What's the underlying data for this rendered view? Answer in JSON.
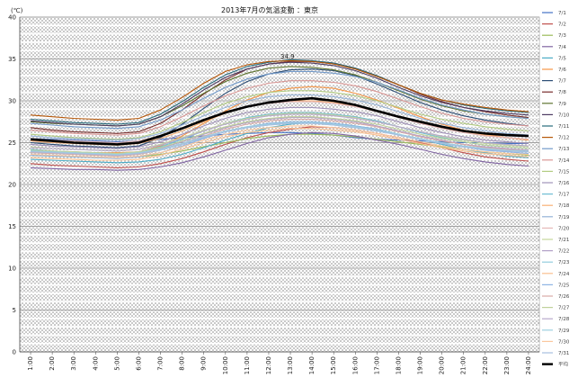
{
  "chart_data": {
    "type": "line",
    "title": "2013年7月の気温変動 ：東京",
    "ylabel": "(℃)",
    "xlabel": "",
    "ylim": [
      0,
      40
    ],
    "yticks": [
      0,
      5,
      10,
      15,
      20,
      25,
      30,
      35,
      40
    ],
    "grid": true,
    "legend_position": "right",
    "annotation": "34.9",
    "x": [
      "1:00",
      "2:00",
      "3:00",
      "4:00",
      "5:00",
      "6:00",
      "7:00",
      "8:00",
      "9:00",
      "10:00",
      "11:00",
      "12:00",
      "13:00",
      "14:00",
      "15:00",
      "16:00",
      "17:00",
      "18:00",
      "19:00",
      "20:00",
      "21:00",
      "22:00",
      "23:00",
      "24:00"
    ],
    "series": [
      {
        "name": "7/1",
        "color": "#4472c4",
        "values": [
          25.5,
          25.4,
          25.3,
          25.2,
          25.1,
          25.2,
          25.4,
          25.6,
          25.8,
          26.0,
          26.1,
          26.2,
          26.2,
          26.1,
          25.9,
          25.6,
          25.4,
          25.3,
          25.2,
          25.1,
          25.0,
          25.0,
          24.9,
          24.9
        ]
      },
      {
        "name": "7/2",
        "color": "#c0504d",
        "values": [
          22.5,
          22.3,
          22.2,
          22.1,
          22.0,
          22.1,
          22.5,
          23.1,
          23.9,
          24.8,
          25.6,
          26.2,
          26.6,
          26.9,
          26.8,
          26.5,
          26.1,
          25.6,
          25.0,
          24.4,
          23.8,
          23.3,
          23.0,
          22.8
        ]
      },
      {
        "name": "7/3",
        "color": "#9bbb59",
        "values": [
          23.5,
          23.4,
          23.3,
          23.2,
          23.2,
          23.3,
          23.6,
          24.0,
          24.5,
          25.0,
          25.5,
          25.8,
          26.0,
          26.0,
          25.9,
          25.7,
          25.4,
          25.1,
          24.8,
          24.5,
          24.2,
          23.9,
          23.7,
          23.5
        ]
      },
      {
        "name": "7/4",
        "color": "#8064a2",
        "values": [
          22.0,
          21.9,
          21.8,
          21.8,
          21.7,
          21.8,
          22.1,
          22.6,
          23.3,
          24.1,
          24.9,
          25.6,
          26.0,
          26.2,
          26.1,
          25.8,
          25.3,
          24.8,
          24.2,
          23.6,
          23.1,
          22.7,
          22.4,
          22.2
        ]
      },
      {
        "name": "7/5",
        "color": "#4bacc6",
        "values": [
          23.0,
          22.9,
          22.8,
          22.7,
          22.6,
          22.7,
          23.0,
          23.6,
          24.4,
          25.3,
          26.1,
          26.8,
          27.2,
          27.4,
          27.3,
          27.0,
          26.6,
          26.0,
          25.4,
          24.8,
          24.2,
          23.8,
          23.4,
          23.2
        ]
      },
      {
        "name": "7/6",
        "color": "#f79646",
        "values": [
          24.2,
          24.0,
          23.9,
          23.8,
          23.8,
          23.9,
          24.6,
          25.8,
          27.3,
          28.8,
          30.1,
          31.0,
          31.5,
          31.7,
          31.5,
          30.9,
          30.1,
          29.1,
          28.1,
          27.2,
          26.5,
          26.0,
          25.6,
          25.3
        ]
      },
      {
        "name": "7/7",
        "color": "#2c4d75",
        "values": [
          25.0,
          24.8,
          24.6,
          24.5,
          24.4,
          24.6,
          25.6,
          27.2,
          29.1,
          30.9,
          32.3,
          33.2,
          33.7,
          33.8,
          33.6,
          33.0,
          32.0,
          30.9,
          29.8,
          28.9,
          28.2,
          27.7,
          27.3,
          27.0
        ]
      },
      {
        "name": "7/8",
        "color": "#772c2a",
        "values": [
          26.8,
          26.5,
          26.3,
          26.2,
          26.1,
          26.3,
          27.3,
          28.9,
          30.8,
          32.5,
          33.8,
          34.4,
          34.7,
          34.7,
          34.5,
          33.9,
          33.0,
          31.9,
          30.8,
          29.9,
          29.2,
          28.7,
          28.3,
          28.0
        ]
      },
      {
        "name": "7/9",
        "color": "#5f7530",
        "values": [
          27.5,
          27.3,
          27.2,
          27.1,
          27.0,
          27.2,
          28.1,
          29.4,
          30.9,
          32.3,
          33.3,
          33.9,
          34.1,
          34.0,
          33.7,
          33.1,
          32.2,
          31.2,
          30.2,
          29.4,
          28.8,
          28.4,
          28.1,
          27.9
        ]
      },
      {
        "name": "7/10",
        "color": "#4d3b62",
        "values": [
          27.6,
          27.4,
          27.2,
          27.1,
          27.0,
          27.2,
          28.1,
          29.6,
          31.3,
          32.8,
          33.8,
          34.4,
          34.6,
          34.5,
          34.2,
          33.6,
          32.7,
          31.6,
          30.6,
          29.8,
          29.2,
          28.8,
          28.5,
          28.3
        ]
      },
      {
        "name": "7/11",
        "color": "#276a7c",
        "values": [
          27.8,
          27.6,
          27.4,
          27.3,
          27.2,
          27.4,
          28.4,
          29.9,
          31.6,
          33.1,
          34.1,
          34.6,
          34.9,
          34.8,
          34.5,
          33.9,
          33.0,
          31.9,
          30.9,
          30.1,
          29.5,
          29.1,
          28.8,
          28.6
        ]
      },
      {
        "name": "7/12",
        "color": "#b65708",
        "values": [
          28.3,
          28.1,
          27.9,
          27.8,
          27.7,
          27.9,
          28.9,
          30.4,
          32.1,
          33.5,
          34.3,
          34.7,
          34.8,
          34.7,
          34.4,
          33.8,
          32.9,
          31.9,
          30.9,
          30.1,
          29.6,
          29.2,
          28.9,
          28.7
        ]
      },
      {
        "name": "7/13",
        "color": "#729aca",
        "values": [
          27.3,
          27.1,
          26.9,
          26.8,
          26.7,
          26.9,
          27.7,
          28.9,
          30.3,
          31.6,
          32.6,
          33.2,
          33.5,
          33.5,
          33.3,
          32.9,
          32.2,
          31.3,
          30.3,
          29.5,
          28.9,
          28.4,
          28.1,
          27.9
        ]
      },
      {
        "name": "7/14",
        "color": "#d99694",
        "values": [
          26.5,
          26.3,
          26.1,
          26.0,
          25.9,
          26.1,
          26.9,
          28.1,
          29.4,
          30.6,
          31.5,
          32.1,
          32.4,
          32.4,
          32.2,
          31.8,
          31.1,
          30.2,
          29.3,
          28.5,
          27.9,
          27.5,
          27.2,
          27.0
        ]
      },
      {
        "name": "7/15",
        "color": "#b3cc82",
        "values": [
          26.0,
          25.8,
          25.6,
          25.5,
          25.4,
          25.6,
          26.3,
          27.4,
          28.6,
          29.7,
          30.5,
          31.0,
          31.2,
          31.2,
          31.0,
          30.6,
          30.0,
          29.2,
          28.4,
          27.8,
          27.3,
          26.9,
          26.6,
          26.4
        ]
      },
      {
        "name": "7/16",
        "color": "#a092b9",
        "values": [
          24.8,
          24.6,
          24.5,
          24.4,
          24.3,
          24.5,
          25.1,
          26.0,
          27.0,
          27.9,
          28.6,
          29.0,
          29.2,
          29.2,
          29.0,
          28.7,
          28.2,
          27.5,
          26.8,
          26.2,
          25.7,
          25.3,
          25.1,
          24.9
        ]
      },
      {
        "name": "7/17",
        "color": "#6fbdd3",
        "values": [
          24.2,
          24.0,
          23.9,
          23.8,
          23.7,
          23.9,
          24.5,
          25.4,
          26.4,
          27.3,
          28.0,
          28.4,
          28.6,
          28.6,
          28.4,
          28.1,
          27.6,
          26.9,
          26.2,
          25.6,
          25.1,
          24.7,
          24.5,
          24.3
        ]
      },
      {
        "name": "7/18",
        "color": "#f9b074",
        "values": [
          25.2,
          25.0,
          24.9,
          24.8,
          24.7,
          24.9,
          25.5,
          26.4,
          27.5,
          28.5,
          29.3,
          29.8,
          30.0,
          30.0,
          29.8,
          29.4,
          28.8,
          28.1,
          27.4,
          26.8,
          26.3,
          25.9,
          25.6,
          25.4
        ]
      },
      {
        "name": "7/19",
        "color": "#95b3d7",
        "values": [
          25.8,
          25.6,
          25.5,
          25.4,
          25.3,
          25.5,
          26.1,
          27.1,
          28.2,
          29.2,
          30.0,
          30.5,
          30.7,
          30.7,
          30.5,
          30.1,
          29.5,
          28.7,
          27.9,
          27.3,
          26.8,
          26.4,
          26.1,
          25.9
        ]
      },
      {
        "name": "7/20",
        "color": "#e6b9b8",
        "values": [
          25.5,
          25.3,
          25.2,
          25.1,
          25.0,
          25.2,
          25.8,
          26.7,
          27.7,
          28.6,
          29.3,
          29.7,
          29.9,
          29.9,
          29.7,
          29.3,
          28.7,
          28.0,
          27.3,
          26.7,
          26.2,
          25.8,
          25.6,
          25.4
        ]
      },
      {
        "name": "7/21",
        "color": "#c4d79b",
        "values": [
          24.5,
          24.3,
          24.2,
          24.1,
          24.0,
          24.2,
          24.8,
          25.6,
          26.5,
          27.3,
          27.9,
          28.3,
          28.5,
          28.5,
          28.3,
          28.0,
          27.5,
          26.9,
          26.3,
          25.7,
          25.3,
          24.9,
          24.7,
          24.5
        ]
      },
      {
        "name": "7/22",
        "color": "#b1a0c7",
        "values": [
          24.0,
          23.9,
          23.8,
          23.7,
          23.6,
          23.8,
          24.3,
          25.1,
          26.0,
          26.8,
          27.4,
          27.8,
          28.0,
          28.0,
          27.8,
          27.5,
          27.0,
          26.4,
          25.8,
          25.3,
          24.8,
          24.5,
          24.3,
          24.1
        ]
      },
      {
        "name": "7/23",
        "color": "#93cddd",
        "values": [
          23.8,
          23.7,
          23.6,
          23.5,
          23.4,
          23.6,
          24.1,
          24.8,
          25.6,
          26.3,
          26.8,
          27.1,
          27.3,
          27.3,
          27.1,
          26.8,
          26.4,
          25.9,
          25.4,
          24.9,
          24.5,
          24.2,
          24.0,
          23.9
        ]
      },
      {
        "name": "7/24",
        "color": "#fac090",
        "values": [
          23.2,
          23.1,
          23.0,
          22.9,
          22.9,
          23.0,
          23.5,
          24.2,
          25.0,
          25.7,
          26.2,
          26.5,
          26.7,
          26.7,
          26.5,
          26.3,
          25.9,
          25.4,
          24.9,
          24.4,
          24.0,
          23.7,
          23.5,
          23.3
        ]
      },
      {
        "name": "7/25",
        "color": "#8eb4e3",
        "values": [
          23.5,
          23.4,
          23.3,
          23.2,
          23.1,
          23.3,
          23.8,
          24.6,
          25.5,
          26.3,
          26.9,
          27.3,
          27.5,
          27.5,
          27.3,
          27.0,
          26.6,
          26.0,
          25.4,
          24.9,
          24.5,
          24.1,
          23.9,
          23.7
        ]
      },
      {
        "name": "7/26",
        "color": "#d8a9a7",
        "values": [
          23.8,
          23.7,
          23.6,
          23.5,
          23.4,
          23.6,
          24.1,
          24.9,
          25.8,
          26.6,
          27.2,
          27.6,
          27.8,
          27.8,
          27.6,
          27.3,
          26.9,
          26.3,
          25.7,
          25.2,
          24.8,
          24.4,
          24.2,
          24.0
        ]
      },
      {
        "name": "7/27",
        "color": "#bfd19a",
        "values": [
          24.1,
          24.0,
          23.9,
          23.8,
          23.7,
          23.9,
          24.4,
          25.2,
          26.1,
          26.9,
          27.5,
          27.9,
          28.1,
          28.1,
          27.9,
          27.6,
          27.2,
          26.6,
          26.0,
          25.5,
          25.1,
          24.7,
          24.5,
          24.3
        ]
      },
      {
        "name": "7/28",
        "color": "#b7a9cc",
        "values": [
          24.4,
          24.3,
          24.2,
          24.1,
          24.0,
          24.2,
          24.7,
          25.5,
          26.4,
          27.2,
          27.8,
          28.2,
          28.4,
          28.4,
          28.2,
          27.9,
          27.5,
          26.9,
          26.3,
          25.8,
          25.4,
          25.0,
          24.8,
          24.6
        ]
      },
      {
        "name": "7/29",
        "color": "#9dd1e0",
        "values": [
          24.0,
          23.9,
          23.8,
          23.7,
          23.6,
          23.8,
          24.2,
          24.9,
          25.7,
          26.4,
          26.9,
          27.2,
          27.4,
          27.4,
          27.2,
          26.9,
          26.5,
          26.0,
          25.5,
          25.0,
          24.6,
          24.3,
          24.1,
          24.0
        ]
      },
      {
        "name": "7/30",
        "color": "#fbc79e",
        "values": [
          23.6,
          23.5,
          23.4,
          23.3,
          23.2,
          23.4,
          23.8,
          24.5,
          25.3,
          26.0,
          26.5,
          26.8,
          27.0,
          27.0,
          26.8,
          26.5,
          26.1,
          25.6,
          25.1,
          24.6,
          24.2,
          23.9,
          23.7,
          23.6
        ]
      },
      {
        "name": "7/31",
        "color": "#a6bde0",
        "values": [
          23.9,
          23.8,
          23.7,
          23.6,
          23.5,
          23.7,
          24.1,
          24.8,
          25.6,
          26.3,
          26.8,
          27.1,
          27.3,
          27.3,
          27.1,
          26.8,
          26.4,
          25.9,
          25.4,
          24.9,
          24.5,
          24.2,
          24.0,
          23.9
        ]
      },
      {
        "name": "平均",
        "color": "#000000",
        "bold": true,
        "values": [
          25.4,
          25.2,
          25.0,
          24.9,
          24.8,
          25.0,
          25.8,
          26.7,
          27.7,
          28.6,
          29.3,
          29.8,
          30.1,
          30.3,
          30.0,
          29.5,
          28.8,
          28.1,
          27.5,
          26.9,
          26.4,
          26.1,
          25.9,
          25.8
        ]
      }
    ]
  }
}
